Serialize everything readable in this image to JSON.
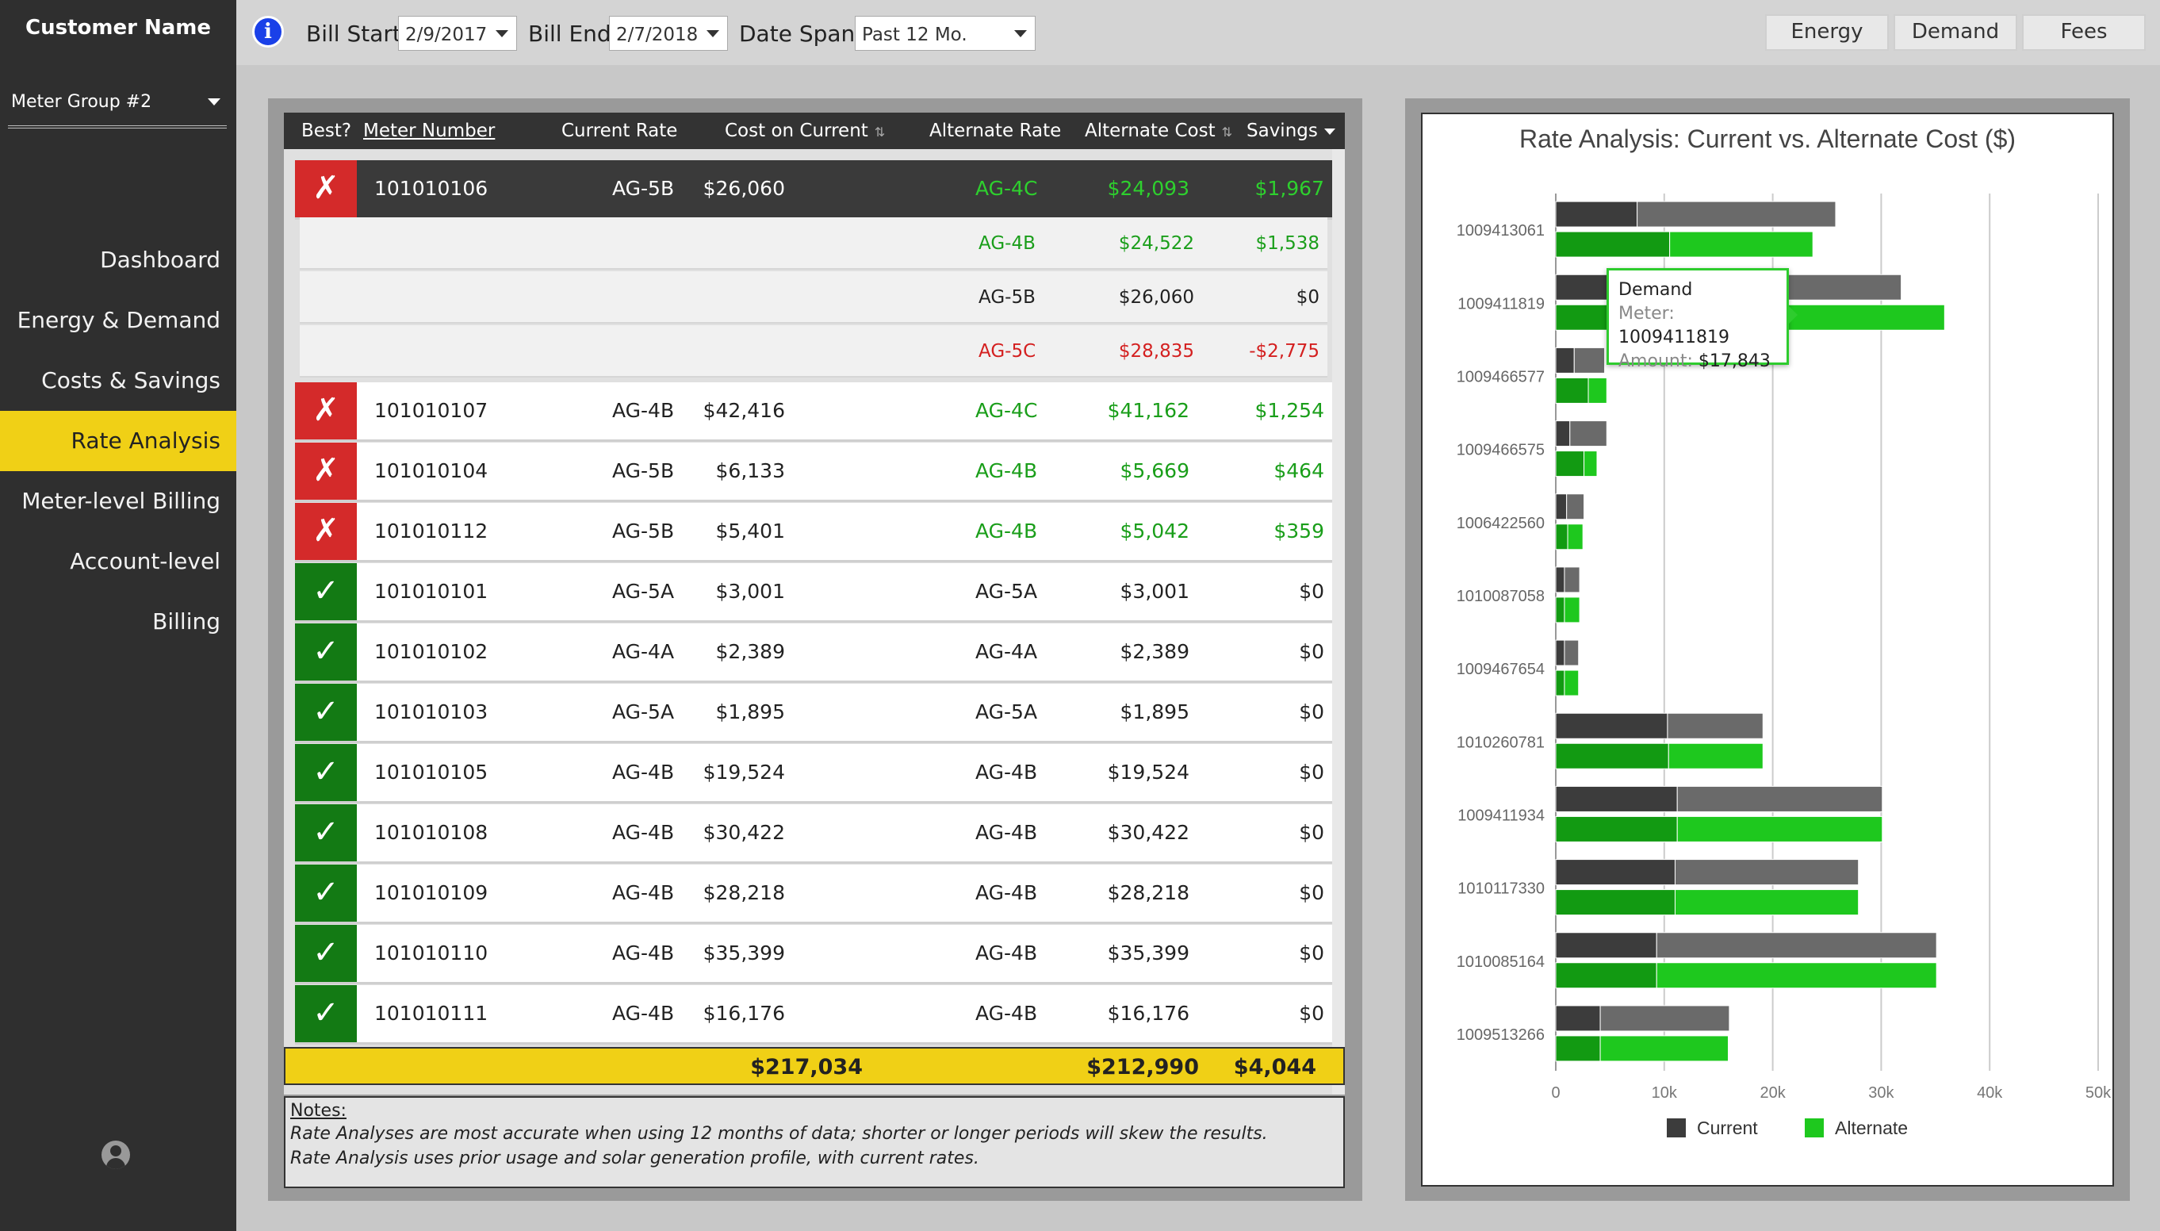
{
  "sidebar": {
    "customer_name": "Customer Name",
    "meter_group": "Meter Group #2",
    "items": [
      {
        "label": "Dashboard",
        "active": false
      },
      {
        "label": "Energy & Demand",
        "active": false
      },
      {
        "label": "Costs & Savings",
        "active": false
      },
      {
        "label": "Rate Analysis",
        "active": true
      },
      {
        "label": "Meter-level Billing",
        "active": false
      },
      {
        "label": "Account-level Billing",
        "active": false
      }
    ],
    "user_icon": "user-icon"
  },
  "topbar": {
    "bill_start_label": "Bill Start:",
    "bill_start_value": "2/9/2017",
    "bill_end_label": "Bill End:",
    "bill_end_value": "2/7/2018",
    "date_span_label": "Date Span:",
    "date_span_value": "Past 12 Mo.",
    "buttons": [
      "Energy",
      "Demand",
      "Fees"
    ]
  },
  "table": {
    "columns": [
      "Best?",
      "Meter Number",
      "Current Rate",
      "Cost on Current",
      "Alternate Rate",
      "Alternate Cost",
      "Savings"
    ],
    "expanded_row": {
      "best": false,
      "meter": "101010106",
      "current_rate": "AG-5B",
      "cost": "$26,060",
      "alt_rate": "AG-4C",
      "alt_cost": "$24,093",
      "savings": "$1,967",
      "options": [
        {
          "rate": "AG-4B",
          "cost": "$24,522",
          "savings": "$1,538",
          "kind": "better"
        },
        {
          "rate": "AG-5B",
          "cost": "$26,060",
          "savings": "$0",
          "kind": "same"
        },
        {
          "rate": "AG-5C",
          "cost": "$28,835",
          "savings": "-$2,775",
          "kind": "worse"
        }
      ]
    },
    "rows": [
      {
        "best": false,
        "meter": "101010107",
        "current_rate": "AG-4B",
        "cost": "$42,416",
        "alt_rate": "AG-4C",
        "alt_cost": "$41,162",
        "savings": "$1,254"
      },
      {
        "best": false,
        "meter": "101010104",
        "current_rate": "AG-5B",
        "cost": "$6,133",
        "alt_rate": "AG-4B",
        "alt_cost": "$5,669",
        "savings": "$464"
      },
      {
        "best": false,
        "meter": "101010112",
        "current_rate": "AG-5B",
        "cost": "$5,401",
        "alt_rate": "AG-4B",
        "alt_cost": "$5,042",
        "savings": "$359"
      },
      {
        "best": true,
        "meter": "101010101",
        "current_rate": "AG-5A",
        "cost": "$3,001",
        "alt_rate": "AG-5A",
        "alt_cost": "$3,001",
        "savings": "$0"
      },
      {
        "best": true,
        "meter": "101010102",
        "current_rate": "AG-4A",
        "cost": "$2,389",
        "alt_rate": "AG-4A",
        "alt_cost": "$2,389",
        "savings": "$0"
      },
      {
        "best": true,
        "meter": "101010103",
        "current_rate": "AG-5A",
        "cost": "$1,895",
        "alt_rate": "AG-5A",
        "alt_cost": "$1,895",
        "savings": "$0"
      },
      {
        "best": true,
        "meter": "101010105",
        "current_rate": "AG-4B",
        "cost": "$19,524",
        "alt_rate": "AG-4B",
        "alt_cost": "$19,524",
        "savings": "$0"
      },
      {
        "best": true,
        "meter": "101010108",
        "current_rate": "AG-4B",
        "cost": "$30,422",
        "alt_rate": "AG-4B",
        "alt_cost": "$30,422",
        "savings": "$0"
      },
      {
        "best": true,
        "meter": "101010109",
        "current_rate": "AG-4B",
        "cost": "$28,218",
        "alt_rate": "AG-4B",
        "alt_cost": "$28,218",
        "savings": "$0"
      },
      {
        "best": true,
        "meter": "101010110",
        "current_rate": "AG-4B",
        "cost": "$35,399",
        "alt_rate": "AG-4B",
        "alt_cost": "$35,399",
        "savings": "$0"
      },
      {
        "best": true,
        "meter": "101010111",
        "current_rate": "AG-4B",
        "cost": "$16,176",
        "alt_rate": "AG-4B",
        "alt_cost": "$16,176",
        "savings": "$0"
      }
    ],
    "totals": {
      "cost": "$217,034",
      "alt_cost": "$212,990",
      "savings": "$4,044"
    }
  },
  "notes": {
    "title": "Notes:",
    "line1": "Rate Analyses are most accurate when using 12 months of data; shorter or longer periods will skew the results.",
    "line2": "Rate Analysis uses prior usage and solar generation profile, with current rates."
  },
  "tooltip": {
    "title": "Demand",
    "meter_label": "Meter:",
    "meter_value": "1009411819",
    "amount_label": "Amount:",
    "amount_value": "$17,843"
  },
  "colors": {
    "accent_yellow": "#f0d016",
    "current_dark": "#3c3c3c",
    "current_light": "#6a6a6a",
    "alt_dark": "#129a12",
    "alt_light": "#1ec81e",
    "green_text": "#1a9e1a",
    "red_text": "#d42020"
  },
  "chart_data": {
    "type": "bar",
    "orientation": "horizontal",
    "stacked": true,
    "title": "Rate Analysis: Current vs. Alternate Cost ($)",
    "categories": [
      "1009413061",
      "1009411819",
      "1009466577",
      "1009466575",
      "1006422560",
      "1010087058",
      "1009467654",
      "1010260781",
      "1009411934",
      "1010117330",
      "1010085164",
      "1009513266"
    ],
    "series": [
      {
        "name": "Current",
        "first_part": [
          7500,
          17843,
          1700,
          1300,
          1000,
          800,
          800,
          10300,
          11200,
          11000,
          9300,
          4100
        ],
        "second_part": [
          18300,
          14000,
          2800,
          3400,
          1600,
          1400,
          1300,
          8800,
          18900,
          16900,
          25800,
          11900
        ]
      },
      {
        "name": "Alternate",
        "first_part": [
          10500,
          17843,
          3000,
          2600,
          1100,
          800,
          800,
          10400,
          11200,
          11000,
          9300,
          4100
        ],
        "second_part": [
          13200,
          18000,
          1700,
          1200,
          1400,
          1400,
          1300,
          8700,
          18900,
          16900,
          25800,
          11800
        ]
      }
    ],
    "xlim": [
      0,
      50000
    ],
    "x_ticks": [
      "0",
      "10k",
      "20k",
      "30k",
      "40k",
      "50k"
    ],
    "legend": {
      "position": "bottom",
      "entries": [
        "Current",
        "Alternate"
      ]
    },
    "grid": true
  }
}
